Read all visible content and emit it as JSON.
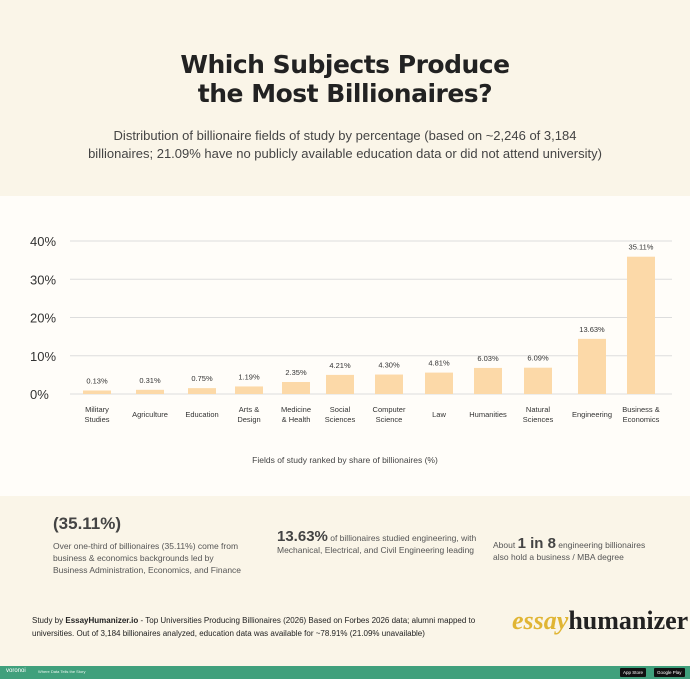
{
  "header": {
    "title_line1": "Which Subjects Produce",
    "title_line2": "the Most Billionaires?",
    "subtitle": "Distribution of billionaire fields of study by percentage (based on ~2,246 of 3,184 billionaires; 21.09% have no publicly available education data or did not attend university)"
  },
  "chart_data": {
    "type": "bar",
    "title": "Which Subjects Produce the Most Billionaires?",
    "xlabel": "Fields of study ranked by share of billionaires (%)",
    "ylabel": "",
    "ylim": [
      0,
      40
    ],
    "yticks": [
      "0%",
      "10%",
      "20%",
      "30%",
      "40%"
    ],
    "grid": true,
    "bar_color": "#fcd9a8",
    "categories": [
      [
        "Military",
        "Studies"
      ],
      [
        "Agriculture"
      ],
      [
        "Education"
      ],
      [
        "Arts &",
        "Design"
      ],
      [
        "Medicine",
        "& Health"
      ],
      [
        "Social",
        "Sciences"
      ],
      [
        "Computer",
        "Science"
      ],
      [
        "Law"
      ],
      [
        "Humanities"
      ],
      [
        "Natural",
        "Sciences"
      ],
      [
        "Engineering"
      ],
      [
        "Business &",
        "Economics"
      ]
    ],
    "values": [
      0.13,
      0.31,
      0.75,
      1.19,
      2.35,
      4.21,
      4.3,
      4.81,
      6.03,
      6.09,
      13.63,
      35.11
    ],
    "labels": [
      "0.13%",
      "0.31%",
      "0.75%",
      "1.19%",
      "2.35%",
      "4.21%",
      "4.30%",
      "4.81%",
      "6.03%",
      "6.09%",
      "13.63%",
      "35.11%"
    ]
  },
  "facts": {
    "f1_big": "(35.11%)",
    "f1_text": "Over one-third of billionaires (35.11%) come from business & economics backgrounds led by Business Administration, Economics, and Finance",
    "f2_big": "13.63%",
    "f2_text": " of billionaires studied engineering, with Mechanical, Electrical, and Civil Engineering leading",
    "f3_pre": "About ",
    "f3_big": "1 in 8",
    "f3_text": " engineering billionaires also hold a business / MBA degree"
  },
  "source": {
    "prefix": "Study by ",
    "brand": "EssayHumanizer.io",
    "text": " - Top Universities Producing Billionaires (2026) Based on Forbes 2026 data; alumni mapped to universities. Out of 3,184 billionaires analyzed, education data was available for ~78.91% (21.09% unavailable)"
  },
  "logo": {
    "part1": "essay",
    "part2": "humanizer"
  },
  "footer": {
    "brand": "voronoi",
    "tagline": "Where Data Tells the Story",
    "app_store": "App Store",
    "google_play": "Google Play"
  }
}
